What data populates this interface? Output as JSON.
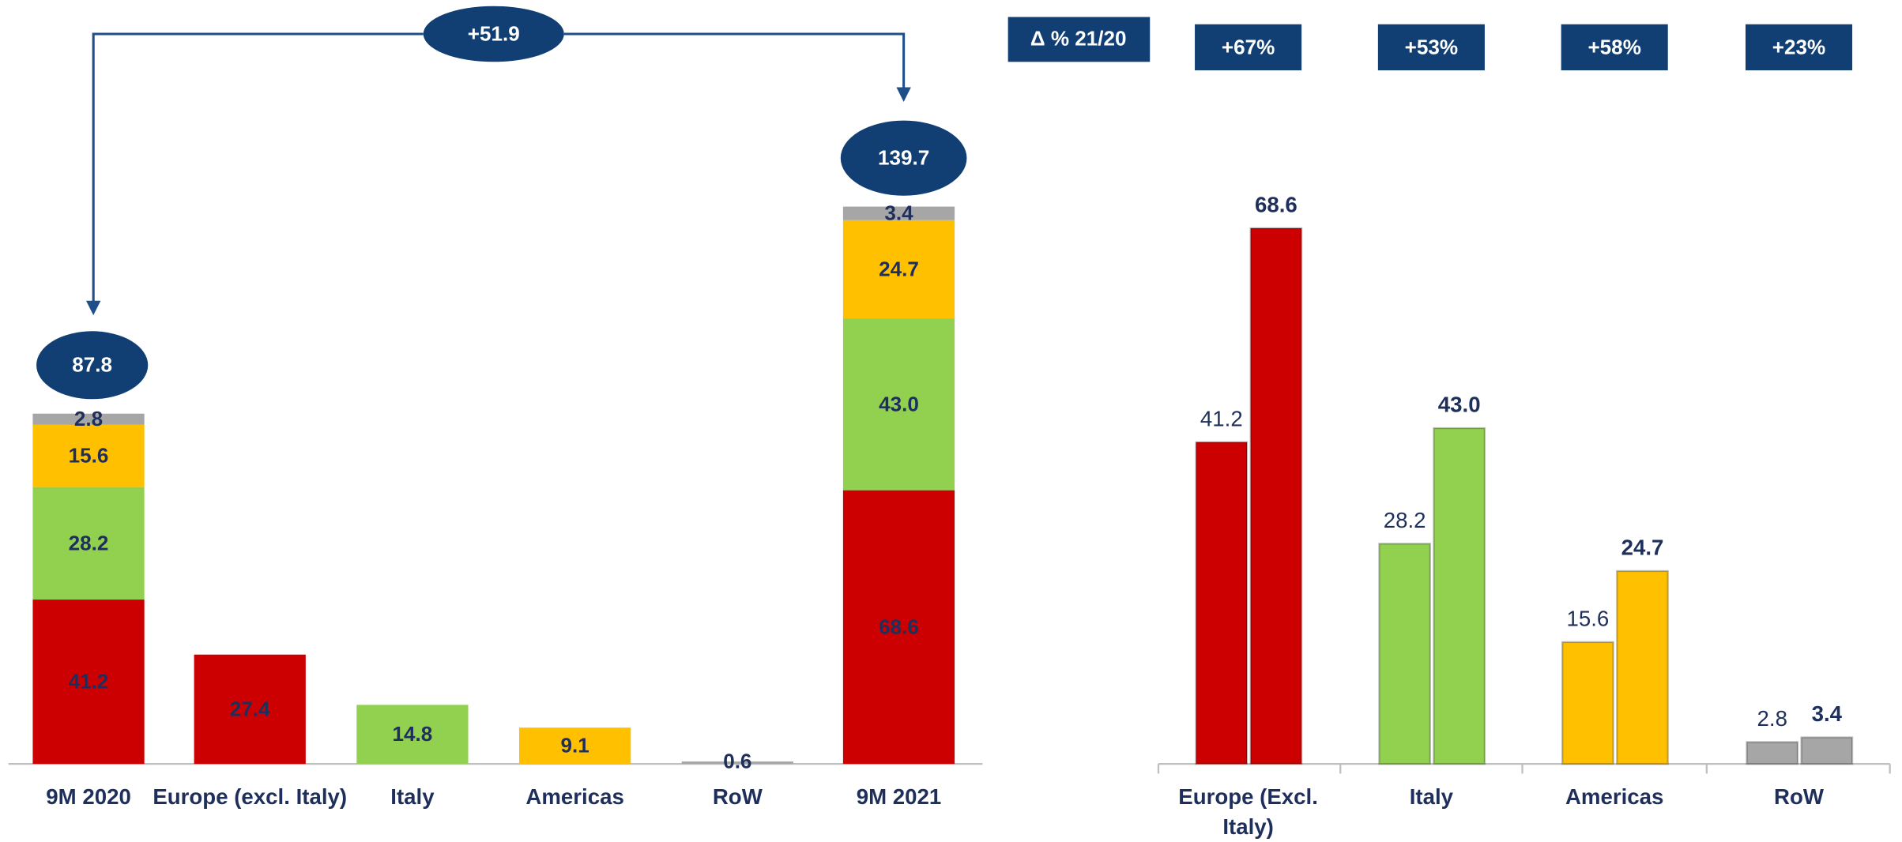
{
  "chart_data": [
    {
      "type": "stacked_bar",
      "categories": [
        "9M 2020",
        "Europe (excl. Italy)",
        "Italy",
        "Americas",
        "RoW",
        "9M 2021"
      ],
      "series": [
        {
          "color": "#cc0000",
          "values": [
            41.2,
            27.4,
            null,
            null,
            null,
            68.6
          ],
          "value_labels": [
            "41.2",
            "27.4",
            null,
            null,
            null,
            "68.6"
          ]
        },
        {
          "color": "#92d050",
          "values": [
            28.2,
            null,
            14.8,
            null,
            null,
            43.0
          ],
          "value_labels": [
            "28.2",
            null,
            "14.8",
            null,
            null,
            "43.0"
          ]
        },
        {
          "color": "#ffc000",
          "values": [
            15.6,
            null,
            null,
            9.1,
            null,
            24.7
          ],
          "value_labels": [
            "15.6",
            null,
            null,
            "9.1",
            null,
            "24.7"
          ]
        },
        {
          "color": "#a6a6a6",
          "values": [
            2.8,
            null,
            null,
            null,
            0.6,
            3.4
          ],
          "value_labels": [
            "2.8",
            null,
            null,
            null,
            "0.6",
            "3.4"
          ]
        }
      ],
      "totals": [
        87.8,
        null,
        null,
        null,
        null,
        139.7
      ],
      "change_label": "+51.9"
    },
    {
      "type": "grouped_bar",
      "categories": [
        "Europe (Excl. Italy)",
        "Italy",
        "Americas",
        "RoW"
      ],
      "colors": [
        "#cc0000",
        "#92d050",
        "#ffc000",
        "#a6a6a6"
      ],
      "series": [
        {
          "values": [
            41.2,
            28.2,
            15.6,
            2.8
          ],
          "value_labels": [
            "41.2",
            "28.2",
            "15.6",
            "2.8"
          ]
        },
        {
          "values": [
            68.6,
            43.0,
            24.7,
            3.4
          ],
          "value_labels": [
            "68.6",
            "43.0",
            "24.7",
            "3.4"
          ]
        }
      ],
      "delta_title": "Δ % 21/20",
      "delta_labels": [
        "+67%",
        "+53%",
        "+58%",
        "+23%"
      ]
    }
  ]
}
